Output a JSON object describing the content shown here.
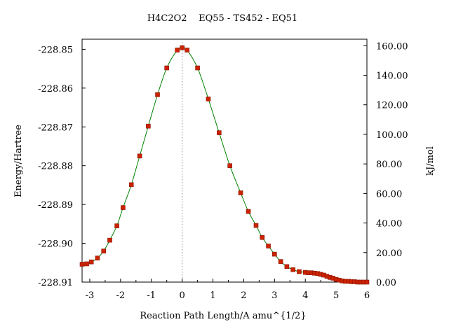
{
  "chart_data": {
    "type": "line",
    "title": "H4C2O2    EQ55 - TS452 - EQ51",
    "xlabel": "Reaction Path Length/A amu^{1/2}",
    "ylabel": "Energy/Hartree",
    "y2label": "kJ/mol",
    "xlim": [
      -3.25,
      6.0
    ],
    "ylim": [
      -228.91,
      -228.8474
    ],
    "y2lim": [
      0.0,
      164.4
    ],
    "x_ticks": [
      "-3",
      "-2",
      "-1",
      "0",
      "1",
      "2",
      "3",
      "4",
      "5",
      "6"
    ],
    "y_ticks": [
      "-228.85",
      "-228.86",
      "-228.87",
      "-228.88",
      "-228.89",
      "-228.90",
      "-228.91"
    ],
    "y2_ticks": [
      "160.00",
      "140.00",
      "120.00",
      "100.00",
      "80.00",
      "60.00",
      "40.00",
      "20.00",
      "0.00"
    ],
    "ts_x": 0,
    "curve_color": "#008000",
    "marker_color": "#cc2200",
    "ts_line_color": "#888888",
    "series": [
      {
        "values": [
          {
            "x": -3.25,
            "y": -228.9054
          },
          {
            "x": -3.1,
            "y": -228.9053
          },
          {
            "x": -2.95,
            "y": -228.9048
          },
          {
            "x": -2.75,
            "y": -228.9038
          },
          {
            "x": -2.55,
            "y": -228.902
          },
          {
            "x": -2.35,
            "y": -228.8992
          },
          {
            "x": -2.12,
            "y": -228.8955
          },
          {
            "x": -1.92,
            "y": -228.8908
          },
          {
            "x": -1.65,
            "y": -228.8849
          },
          {
            "x": -1.38,
            "y": -228.8775
          },
          {
            "x": -1.1,
            "y": -228.8698
          },
          {
            "x": -0.8,
            "y": -228.8617
          },
          {
            "x": -0.5,
            "y": -228.8548
          },
          {
            "x": -0.16,
            "y": -228.8502
          },
          {
            "x": 0.0,
            "y": -228.8496
          },
          {
            "x": 0.16,
            "y": -228.8502
          },
          {
            "x": 0.5,
            "y": -228.8548
          },
          {
            "x": 0.85,
            "y": -228.8628
          },
          {
            "x": 1.2,
            "y": -228.8715
          },
          {
            "x": 1.55,
            "y": -228.88
          },
          {
            "x": 1.9,
            "y": -228.887
          },
          {
            "x": 2.15,
            "y": -228.8918
          },
          {
            "x": 2.4,
            "y": -228.8954
          },
          {
            "x": 2.6,
            "y": -228.8985
          },
          {
            "x": 2.8,
            "y": -228.9007
          },
          {
            "x": 3.0,
            "y": -228.9028
          },
          {
            "x": 3.2,
            "y": -228.9047
          },
          {
            "x": 3.4,
            "y": -228.906
          },
          {
            "x": 3.6,
            "y": -228.9068
          },
          {
            "x": 3.8,
            "y": -228.9073
          },
          {
            "x": 4.0,
            "y": -228.9075
          },
          {
            "x": 4.1,
            "y": -228.9076
          },
          {
            "x": 4.2,
            "y": -228.9076
          },
          {
            "x": 4.3,
            "y": -228.9077
          },
          {
            "x": 4.4,
            "y": -228.9078
          },
          {
            "x": 4.5,
            "y": -228.908
          },
          {
            "x": 4.6,
            "y": -228.9082
          },
          {
            "x": 4.7,
            "y": -228.9085
          },
          {
            "x": 4.8,
            "y": -228.9088
          },
          {
            "x": 4.9,
            "y": -228.909
          },
          {
            "x": 5.0,
            "y": -228.9093
          },
          {
            "x": 5.1,
            "y": -228.9095
          },
          {
            "x": 5.2,
            "y": -228.9097
          },
          {
            "x": 5.3,
            "y": -228.9098
          },
          {
            "x": 5.4,
            "y": -228.9098
          },
          {
            "x": 5.5,
            "y": -228.9099
          },
          {
            "x": 5.6,
            "y": -228.9099
          },
          {
            "x": 5.7,
            "y": -228.91
          },
          {
            "x": 5.8,
            "y": -228.91
          },
          {
            "x": 5.9,
            "y": -228.91
          },
          {
            "x": 6.0,
            "y": -228.91
          }
        ]
      }
    ]
  }
}
